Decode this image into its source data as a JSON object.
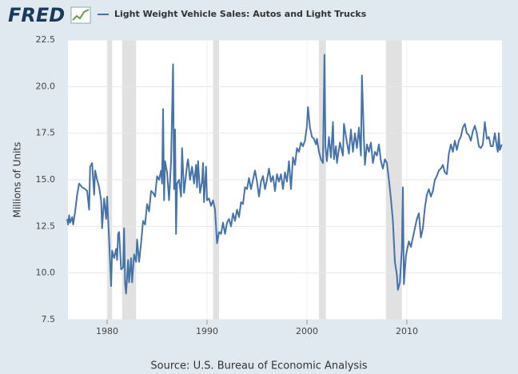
{
  "logo": "FRED",
  "chart_data": {
    "type": "line",
    "y_label": "Millions of Units",
    "source": "Source: U.S. Bureau of Economic Analysis",
    "x": [
      1976.0,
      1976.1,
      1976.2,
      1976.3,
      1976.5,
      1976.6,
      1976.8,
      1977.0,
      1977.2,
      1977.5,
      1977.8,
      1978.0,
      1978.2,
      1978.3,
      1978.5,
      1978.7,
      1978.8,
      1979.0,
      1979.2,
      1979.4,
      1979.5,
      1979.7,
      1979.9,
      1980.0,
      1980.2,
      1980.4,
      1980.5,
      1980.7,
      1980.9,
      1981.0,
      1981.1,
      1981.2,
      1981.4,
      1981.6,
      1981.7,
      1981.8,
      1981.9,
      1982.1,
      1982.2,
      1982.4,
      1982.5,
      1982.7,
      1982.9,
      1983.0,
      1983.2,
      1983.4,
      1983.6,
      1983.8,
      1984.0,
      1984.2,
      1984.4,
      1984.6,
      1984.8,
      1985.0,
      1985.2,
      1985.4,
      1985.5,
      1985.6,
      1985.7,
      1985.8,
      1986.0,
      1986.2,
      1986.4,
      1986.6,
      1986.7,
      1986.8,
      1986.9,
      1987.0,
      1987.2,
      1987.4,
      1987.5,
      1987.7,
      1988.0,
      1988.1,
      1988.3,
      1988.5,
      1988.7,
      1988.9,
      1989.0,
      1989.1,
      1989.3,
      1989.5,
      1989.6,
      1989.7,
      1989.9,
      1990.0,
      1990.2,
      1990.4,
      1990.6,
      1990.8,
      1991.0,
      1991.2,
      1991.4,
      1991.6,
      1991.8,
      1992.0,
      1992.2,
      1992.4,
      1992.6,
      1992.8,
      1993.0,
      1993.2,
      1993.4,
      1993.6,
      1993.8,
      1994.0,
      1994.2,
      1994.4,
      1994.6,
      1994.8,
      1995.0,
      1995.2,
      1995.4,
      1995.6,
      1995.8,
      1996.0,
      1996.2,
      1996.4,
      1996.6,
      1996.8,
      1997.0,
      1997.2,
      1997.4,
      1997.6,
      1997.8,
      1998.0,
      1998.2,
      1998.4,
      1998.6,
      1998.8,
      1999.0,
      1999.2,
      1999.4,
      1999.6,
      1999.8,
      2000.0,
      2000.1,
      2000.3,
      2000.5,
      2000.7,
      2000.9,
      2001.0,
      2001.2,
      2001.4,
      2001.6,
      2001.75,
      2001.85,
      2002.0,
      2002.2,
      2002.4,
      2002.6,
      2002.7,
      2002.9,
      2003.0,
      2003.3,
      2003.6,
      2003.7,
      2004.0,
      2004.2,
      2004.4,
      2004.6,
      2004.8,
      2005.0,
      2005.2,
      2005.4,
      2005.5,
      2005.7,
      2005.8,
      2006.0,
      2006.2,
      2006.4,
      2006.6,
      2006.8,
      2007.0,
      2007.2,
      2007.4,
      2007.6,
      2007.8,
      2008.0,
      2008.2,
      2008.4,
      2008.6,
      2008.8,
      2009.0,
      2009.1,
      2009.3,
      2009.5,
      2009.6,
      2009.7,
      2009.9,
      2010.0,
      2010.2,
      2010.4,
      2010.6,
      2010.8,
      2011.0,
      2011.2,
      2011.4,
      2011.6,
      2011.8,
      2012.0,
      2012.2,
      2012.4,
      2012.6,
      2012.8,
      2013.0,
      2013.2,
      2013.4,
      2013.6,
      2013.8,
      2014.0,
      2014.2,
      2014.4,
      2014.6,
      2014.8,
      2015.0,
      2015.2,
      2015.4,
      2015.6,
      2015.8,
      2016.0,
      2016.2,
      2016.4,
      2016.6,
      2016.8,
      2017.0,
      2017.2,
      2017.4,
      2017.6,
      2017.8,
      2018.0,
      2018.2,
      2018.4,
      2018.6,
      2018.8,
      2019.0,
      2019.1,
      2019.2,
      2019.3,
      2019.5
    ],
    "series": [
      {
        "name": "Light Weight Vehicle Sales: Autos and Light Trucks",
        "color": "#4572a7",
        "values": [
          12.9,
          12.6,
          13.1,
          12.7,
          13.0,
          12.6,
          13.3,
          14.2,
          14.8,
          14.6,
          14.5,
          14.4,
          13.4,
          15.7,
          15.9,
          14.2,
          15.5,
          15.0,
          14.6,
          13.9,
          12.4,
          14.0,
          12.9,
          14.1,
          11.8,
          9.3,
          11.2,
          10.8,
          11.3,
          10.7,
          12.1,
          12.2,
          10.2,
          10.3,
          12.4,
          9.4,
          8.9,
          10.7,
          9.5,
          10.8,
          9.5,
          11.0,
          10.6,
          11.8,
          10.6,
          11.6,
          12.8,
          12.6,
          13.7,
          13.3,
          14.4,
          14.3,
          14.1,
          15.2,
          15.0,
          15.5,
          14.8,
          18.8,
          13.9,
          16.0,
          15.4,
          13.9,
          16.0,
          21.2,
          14.5,
          17.7,
          12.1,
          14.8,
          15.0,
          14.1,
          16.7,
          14.3,
          15.8,
          16.1,
          15.0,
          15.7,
          14.8,
          15.8,
          14.6,
          16.0,
          14.3,
          14.9,
          15.9,
          13.8,
          15.7,
          13.9,
          14.0,
          13.6,
          13.9,
          13.4,
          11.6,
          12.2,
          12.1,
          12.7,
          12.1,
          12.7,
          12.9,
          12.5,
          13.2,
          12.8,
          13.4,
          13.0,
          13.8,
          13.7,
          14.6,
          14.5,
          15.1,
          14.5,
          15.0,
          15.5,
          14.9,
          14.1,
          14.9,
          15.2,
          14.5,
          15.0,
          15.6,
          14.9,
          15.2,
          14.4,
          15.3,
          14.9,
          15.3,
          14.5,
          15.4,
          14.9,
          16.0,
          14.5,
          16.2,
          15.8,
          16.7,
          16.5,
          17.0,
          16.8,
          17.1,
          17.9,
          18.9,
          17.8,
          17.3,
          17.2,
          16.9,
          17.2,
          16.5,
          16.1,
          15.9,
          21.7,
          16.8,
          16.0,
          17.3,
          16.2,
          18.1,
          16.1,
          16.8,
          15.9,
          17.0,
          16.3,
          18.0,
          17.0,
          16.4,
          17.7,
          16.5,
          17.5,
          16.7,
          17.8,
          16.3,
          20.6,
          17.2,
          15.8,
          16.9,
          16.5,
          17.0,
          15.9,
          16.5,
          16.3,
          16.9,
          16.0,
          15.6,
          16.1,
          15.9,
          15.0,
          14.0,
          12.8,
          10.6,
          9.9,
          9.1,
          9.5,
          11.3,
          14.6,
          9.4,
          10.9,
          11.2,
          11.7,
          11.4,
          11.9,
          12.4,
          12.9,
          13.2,
          11.9,
          12.4,
          13.5,
          14.2,
          14.5,
          14.1,
          14.4,
          15.0,
          15.2,
          15.5,
          15.6,
          15.8,
          15.4,
          15.3,
          16.4,
          16.9,
          16.5,
          17.1,
          16.6,
          17.1,
          17.3,
          17.8,
          18.0,
          17.5,
          17.4,
          17.1,
          17.6,
          17.9,
          17.5,
          16.8,
          16.7,
          16.9,
          18.1,
          17.2,
          17.3,
          16.8,
          16.8,
          17.5,
          16.8,
          16.5,
          17.5,
          16.6,
          16.9
        ]
      }
    ],
    "recessions": [
      [
        1980.0,
        1980.5
      ],
      [
        1981.5,
        1982.9
      ],
      [
        1990.6,
        1991.2
      ],
      [
        2001.2,
        2001.9
      ],
      [
        2007.9,
        2009.5
      ]
    ],
    "recession_color": "#e1e1e1",
    "xlim": [
      1976.08,
      2019.52
    ],
    "xticks": [
      1980,
      1990,
      2000,
      2010
    ],
    "ylim": [
      7.5,
      22.5
    ],
    "yticks": [
      7.5,
      {
        "value": 10,
        "label": "10.0"
      },
      12.5,
      {
        "value": 15,
        "label": "15.0"
      },
      17.5,
      {
        "value": 20,
        "label": "20.0"
      },
      22.5
    ],
    "grid": true
  }
}
